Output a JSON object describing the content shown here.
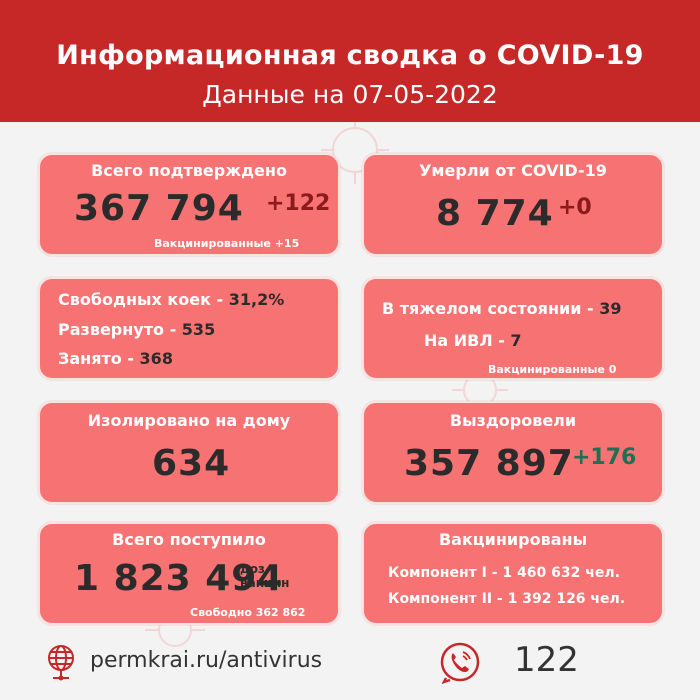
{
  "header": {
    "title": "Информационная сводка о COVID-19",
    "subtitle": "Данные на 07-05-2022"
  },
  "confirmed": {
    "title": "Всего подтверждено",
    "value": "367 794",
    "delta": "+122",
    "note": "Вакцинированные +15"
  },
  "deaths": {
    "title": "Умерли от COVID-19",
    "value": "8 774",
    "delta": "+0"
  },
  "beds": {
    "free_label": "Свободных коек -",
    "free_value": "31,2%",
    "deployed_label": "Развернуто -",
    "deployed_value": "535",
    "occupied_label": "Занято -",
    "occupied_value": "368"
  },
  "severe": {
    "severe_label": "В тяжелом состоянии -",
    "severe_value": "39",
    "ventilator_label": "На ИВЛ -",
    "ventilator_value": "7",
    "note": "Вакцинированные 0"
  },
  "isolated": {
    "title": "Изолировано на дому",
    "value": "634"
  },
  "recovered": {
    "title": "Выздоровели",
    "value": "357 897",
    "delta": "+176"
  },
  "received": {
    "title": "Всего поступило",
    "value": "1 823 494",
    "unit_line1": "доз",
    "unit_line2": "вакцин",
    "note": "Свободно 362 862"
  },
  "vaccinated": {
    "title": "Вакцинированы",
    "component1_label": "Компонент I -",
    "component1_value": "1 460 632 чел.",
    "component2_label": "Компонент II -",
    "component2_value": "1 392 126 чел."
  },
  "footer": {
    "website": "permkrai.ru/antivirus",
    "hotline": "122",
    "website_icon": "globe-icon",
    "hotline_icon": "phone-icon"
  },
  "colors": {
    "header_bg": "#c62828",
    "card_bg": "#f77373",
    "page_bg": "#f3f3f4",
    "delta_red": "#8b1a1a",
    "delta_green": "#1f6f55"
  }
}
